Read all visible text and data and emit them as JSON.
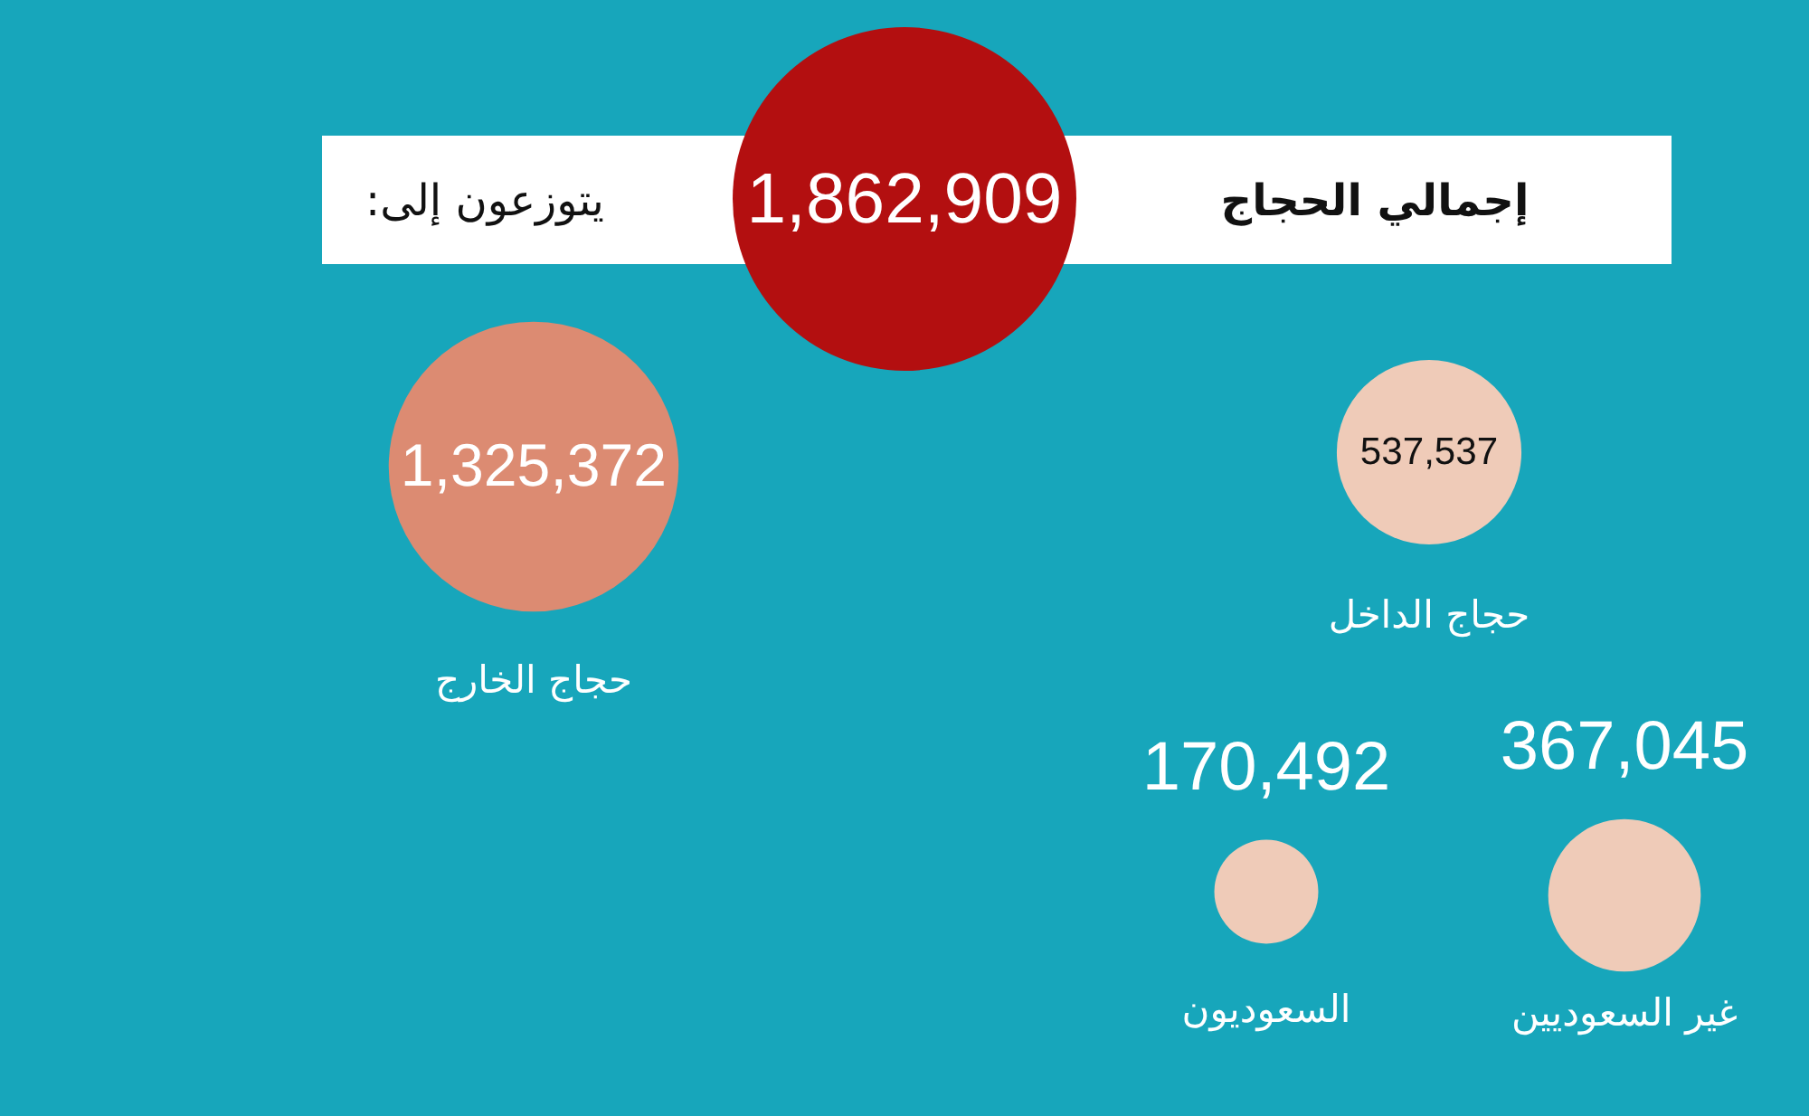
{
  "chart_data": {
    "type": "other",
    "categories": [
      "إجمالي الحجاج",
      "حجاج الخارج",
      "حجاج الداخل",
      "السعوديون",
      "غير السعوديين"
    ],
    "values": [
      1862909,
      1325372,
      537537,
      170492,
      367045
    ],
    "value_labels": [
      "1,862,909",
      "1,325,372",
      "537,537",
      "170,492",
      "367,045"
    ],
    "colors": [
      "#b30f10",
      "#dc8b72",
      "#efcbb8",
      "#efcbb8",
      "#efcbb8"
    ],
    "annotations": [
      "يتوزعون إلى:"
    ]
  }
}
